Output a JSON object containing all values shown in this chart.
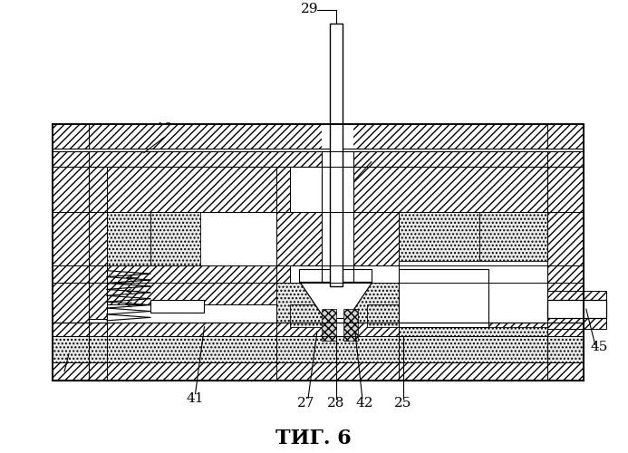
{
  "title": "ΤИГ. 6",
  "title_fontsize": 16,
  "bg_color": "#ffffff",
  "lw": 0.8
}
